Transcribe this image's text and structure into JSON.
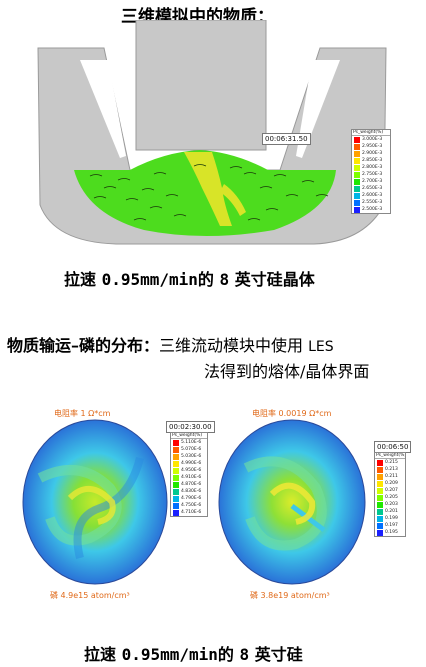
{
  "top_title": "三维模拟中的物质：",
  "panel1": {
    "timer": "00:06:31.50",
    "legend_header": "Ps_weight(%)",
    "legend_values": [
      "3.000E-3",
      "2.950E-3",
      "2.900E-3",
      "2.850E-3",
      "2.800E-3",
      "2.750E-3",
      "2.700E-3",
      "2.650E-3",
      "2.600E-3",
      "2.550E-3",
      "2.500E-3"
    ],
    "caption_pre": "拉速",
    "caption_speed": "0.95mm/min",
    "caption_mid": "的",
    "caption_num": "8",
    "caption_post": "英寸硅晶体"
  },
  "section2": {
    "label_bold": "物质输运–磷的分布：",
    "line1": "三维流动模块中使用",
    "line1_lat": "LES",
    "line2": "法得到的熔体/晶体界面"
  },
  "disk_left": {
    "resistivity": "电阻率 1 Ω*cm",
    "phosphorus": "磷 4.9e15 atom/cm³",
    "timer": "00:02:30.00",
    "legend_header": "Ps_weight(%)",
    "legend_values": [
      "5.110E-6",
      "5.070E-6",
      "5.030E-6",
      "4.990E-6",
      "4.950E-6",
      "4.910E-6",
      "4.870E-6",
      "4.830E-6",
      "4.790E-6",
      "4.750E-6",
      "4.710E-6"
    ]
  },
  "disk_right": {
    "resistivity": "电阻率 0.0019 Ω*cm",
    "phosphorus": "磷 3.8e19 atom/cm³",
    "timer": "00:06:50",
    "legend_header": "Ps_weight(%)",
    "legend_values": [
      "0.215",
      "0.213",
      "0.211",
      "0.209",
      "0.207",
      "0.205",
      "0.203",
      "0.201",
      "0.199",
      "0.197",
      "0.195"
    ]
  },
  "bottom_caption": {
    "pre": "拉速",
    "speed": "0.95mm/min",
    "mid": "的",
    "num": "8",
    "post": "英寸硅"
  },
  "colors": {
    "furnace_gray": "#c8c8c8",
    "melt_green": "#4ddc1e",
    "flow_yellow": "#d8e428",
    "disk_cyan": "#3ec8e8",
    "disk_blue": "#2a72d8",
    "disk_green": "#86e036",
    "label_orange": "#e06a1a"
  },
  "legend_colors": [
    "#ff0000",
    "#ff5a00",
    "#ffa200",
    "#ffe600",
    "#cfff00",
    "#7dff00",
    "#1ee800",
    "#00c890",
    "#00b4e6",
    "#0070ff",
    "#1a20ff"
  ]
}
